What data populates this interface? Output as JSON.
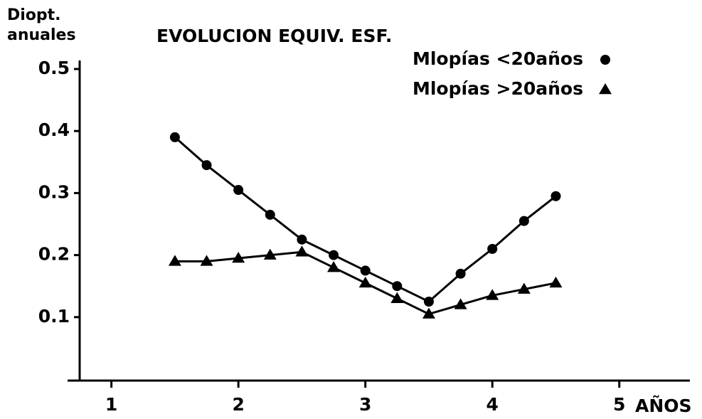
{
  "chart_data": {
    "type": "line",
    "title": "EVOLUCION EQUIV. ESF.",
    "y_label": [
      "Diopt.",
      "anuales"
    ],
    "x_label": "AÑOS",
    "x": [
      1.5,
      1.75,
      2,
      2.25,
      2.5,
      2.75,
      3,
      3.25,
      3.5,
      3.75,
      4,
      4.25,
      4.5
    ],
    "series": [
      {
        "name": "Mlopías <20años",
        "color": "#000000",
        "marker": "circle",
        "values": [
          0.39,
          0.345,
          0.305,
          0.265,
          0.225,
          0.2,
          0.175,
          0.15,
          0.125,
          0.17,
          0.21,
          0.255,
          0.295
        ]
      },
      {
        "name": "Mlopías >20años",
        "color": "#000000",
        "marker": "triangle",
        "values": [
          0.19,
          0.19,
          0.195,
          0.2,
          0.205,
          0.18,
          0.155,
          0.13,
          0.105,
          0.12,
          0.135,
          0.145,
          0.155
        ]
      }
    ],
    "xlim": [
      0.75,
      5.5
    ],
    "xticks": [
      1,
      2,
      3,
      4,
      5
    ],
    "ylim": [
      0,
      0.5
    ],
    "yticks": [
      0.1,
      0.2,
      0.3,
      0.4,
      0.5
    ],
    "grid": false,
    "legend": "top-right"
  }
}
